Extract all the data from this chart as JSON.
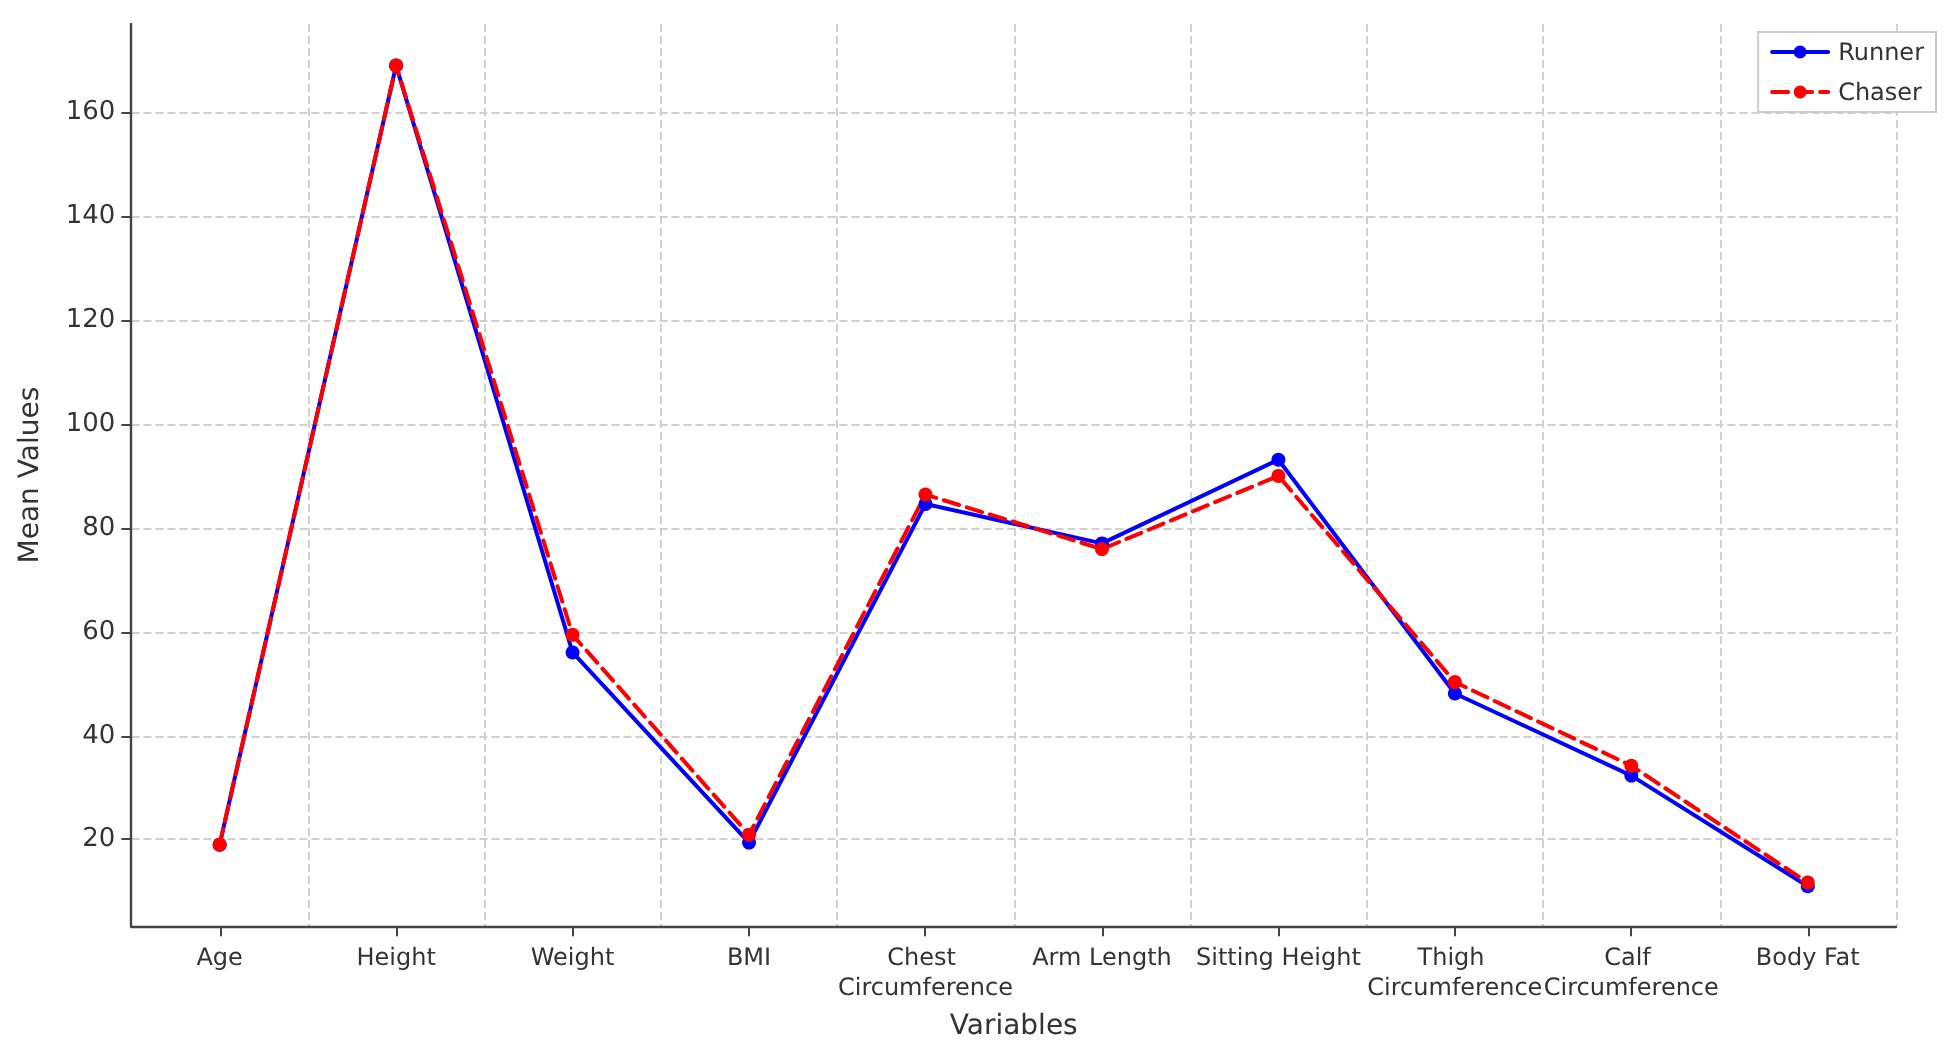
{
  "chart_data": {
    "type": "line",
    "xlabel": "Variables",
    "ylabel": "Mean Values",
    "categories": [
      "Age",
      "Height",
      "Weight",
      "BMI",
      "Chest Circumference",
      "Arm Length",
      "Sitting Height",
      "Thigh Circumference",
      "Calf Circumference",
      "Body Fat"
    ],
    "series": [
      {
        "name": "Runner",
        "color": "#0000ff",
        "line_style": "solid",
        "values": [
          19,
          169,
          56,
          19.4,
          84.6,
          77,
          93.1,
          48.1,
          32.3,
          11
        ]
      },
      {
        "name": "Chaser",
        "color": "#ff0000",
        "line_style": "dashed",
        "values": [
          19,
          169,
          59.4,
          20.9,
          86.4,
          75.9,
          90,
          50.3,
          34.2,
          11.7
        ]
      }
    ],
    "ylim": [
      3.3,
      177
    ],
    "yticks": [
      20,
      40,
      60,
      80,
      100,
      120,
      140,
      160
    ],
    "grid": true,
    "legend": "top right",
    "marker": "circle"
  }
}
